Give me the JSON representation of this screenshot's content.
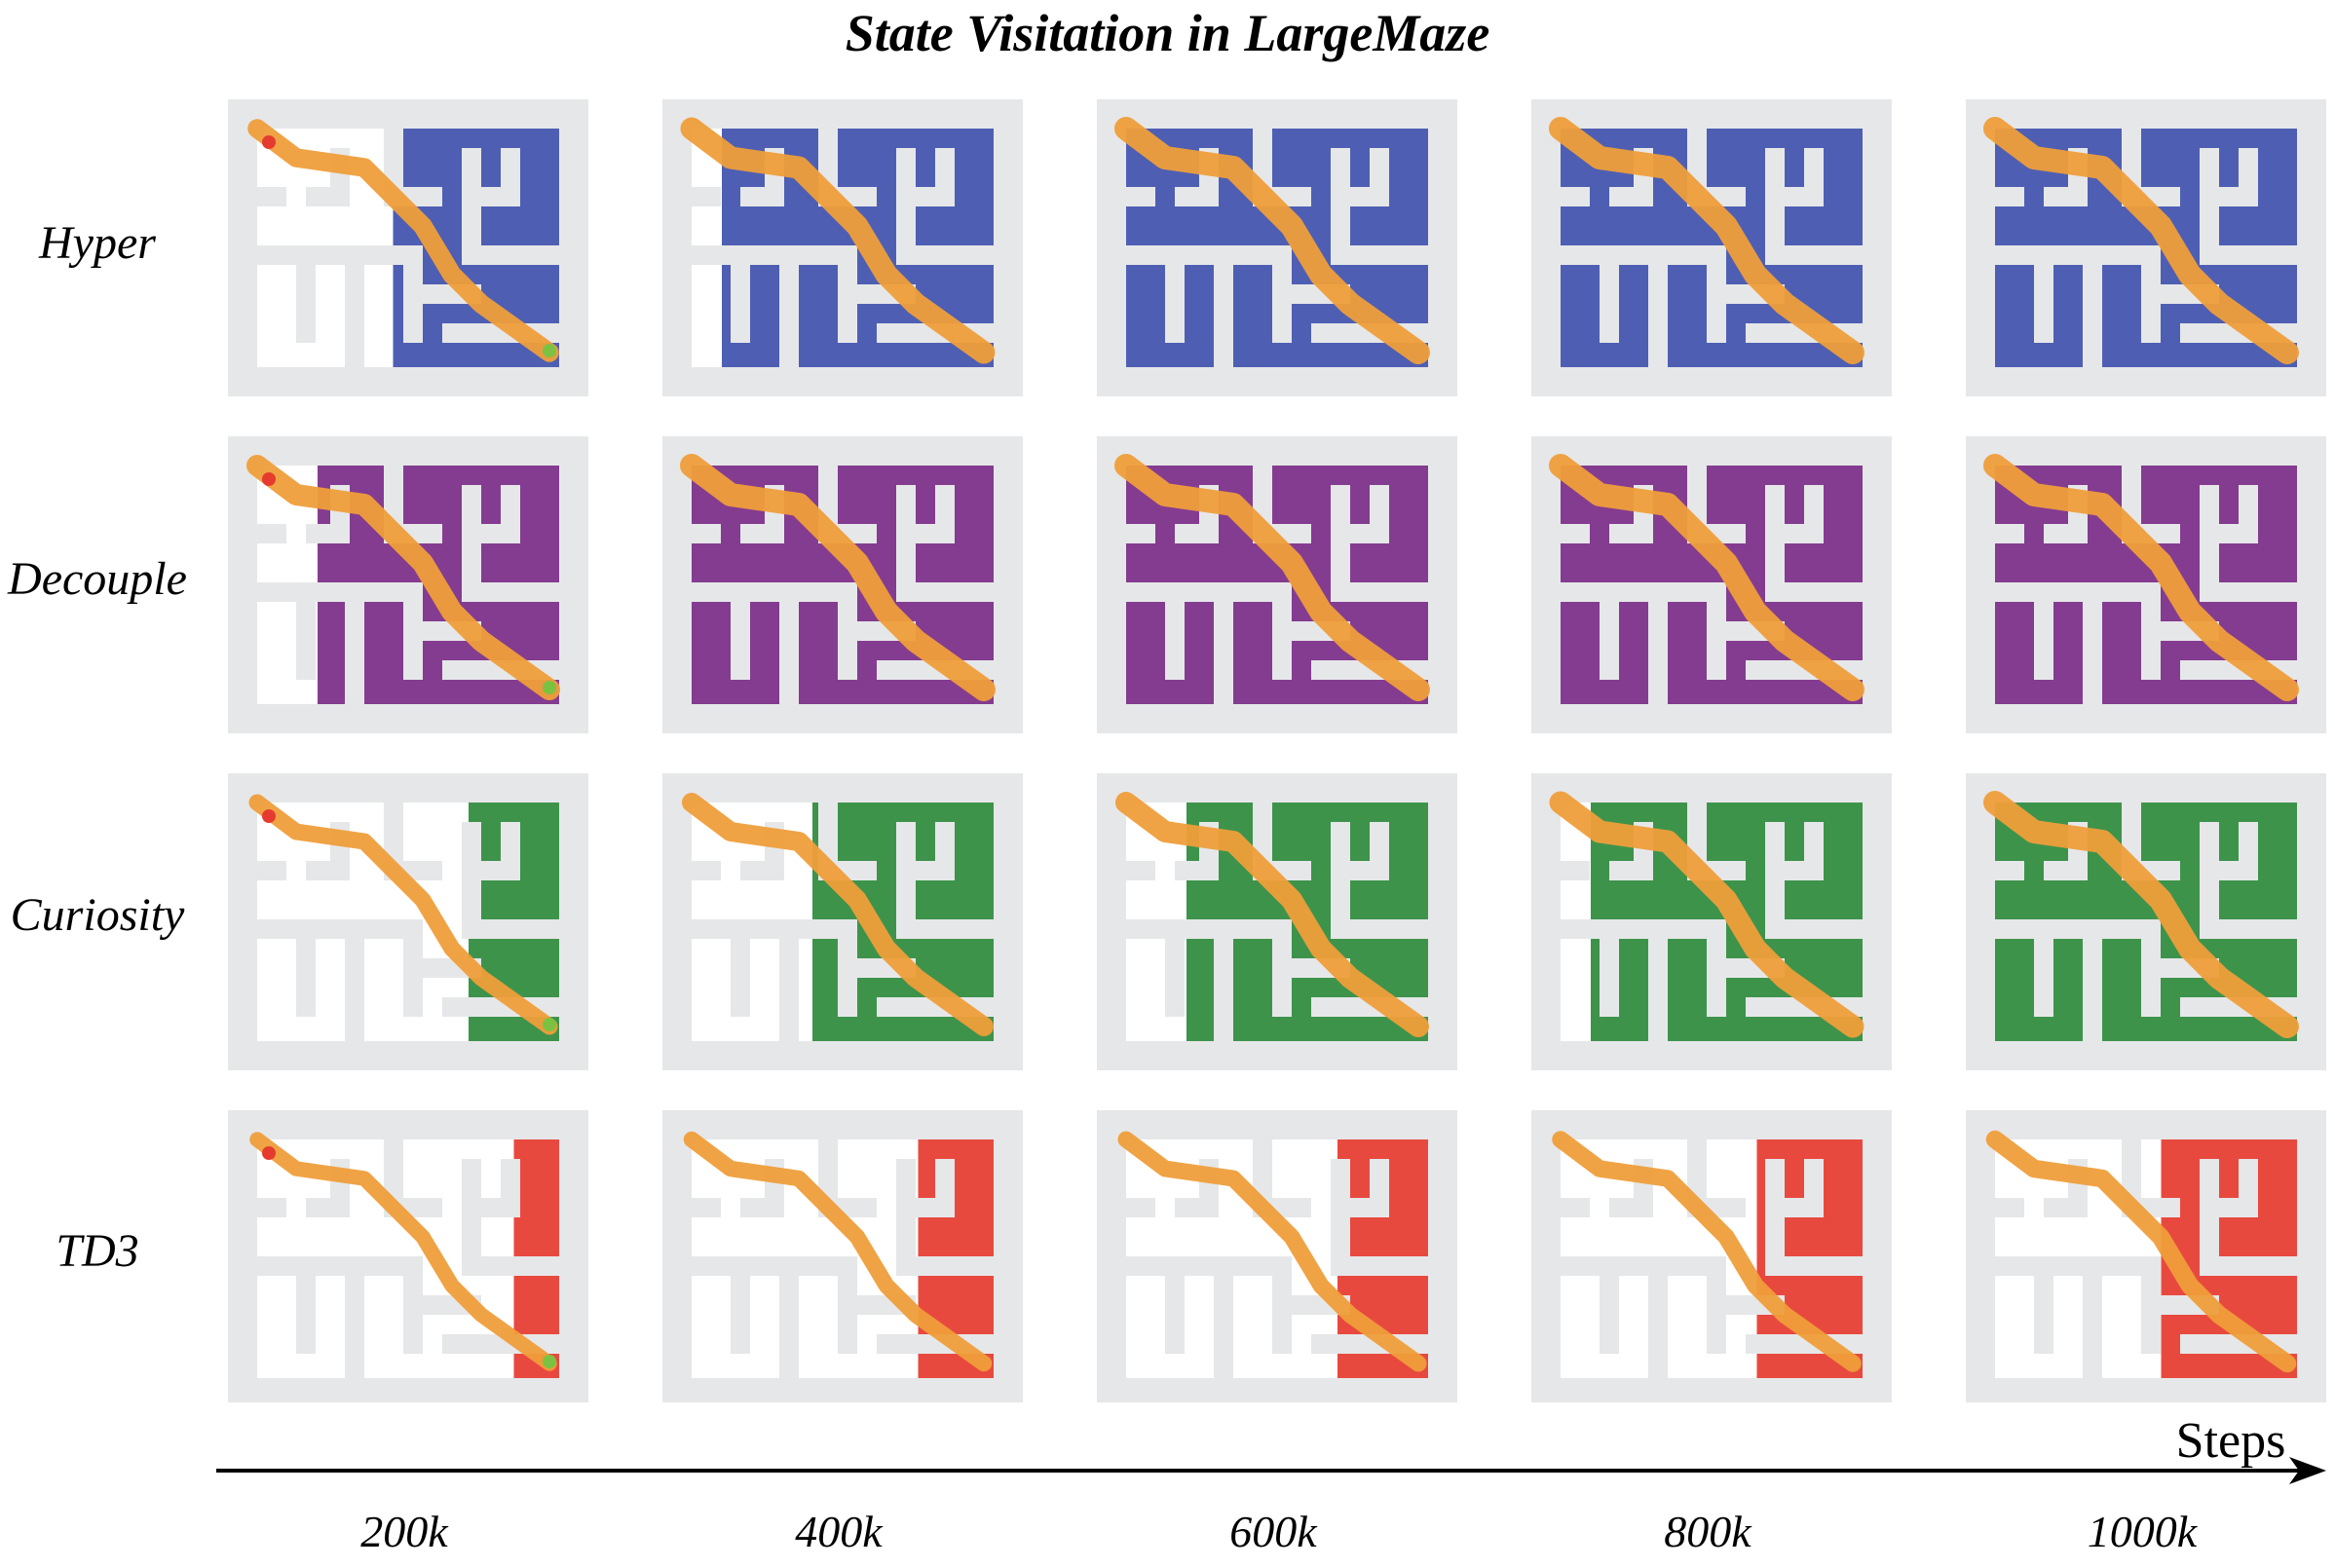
{
  "title": "State Visitation in LargeMaze",
  "methods": [
    {
      "label": "Hyper",
      "visit_color": "#3f51ad",
      "traj_color": "#ef9e3a",
      "coverage": [
        0.55,
        0.9,
        1.0,
        1.0,
        1.0
      ]
    },
    {
      "label": "Decouple",
      "visit_color": "#7a2b87",
      "traj_color": "#ef9e3a",
      "coverage": [
        0.8,
        1.0,
        1.0,
        1.0,
        1.0
      ]
    },
    {
      "label": "Curiosity",
      "visit_color": "#2e8a3c",
      "traj_color": "#ef9e3a",
      "coverage": [
        0.3,
        0.6,
        0.8,
        0.9,
        1.0
      ]
    },
    {
      "label": "TD3",
      "visit_color": "#e63a2f",
      "traj_color": "#ef9e3a",
      "coverage": [
        0.15,
        0.25,
        0.3,
        0.35,
        0.45
      ]
    }
  ],
  "steps": [
    "200k",
    "400k",
    "600k",
    "800k",
    "1000k"
  ],
  "axis_label": "Steps",
  "colors": {
    "maze_wall": "#e6e7e9",
    "maze_floor": "#ffffff",
    "start_marker": "#e53b2f",
    "goal_marker": "#7cc242"
  }
}
